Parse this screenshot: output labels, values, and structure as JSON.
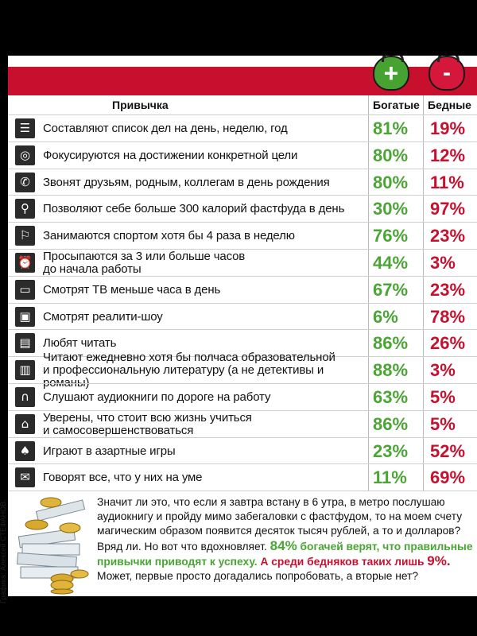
{
  "header": {
    "col_habit": "Привычка",
    "col_rich": "Богатые",
    "col_poor": "Бедные",
    "rich_symbol": "+",
    "poor_symbol": "-"
  },
  "colors": {
    "rich": "#4aa534",
    "poor": "#c8102e",
    "band": "#c8102e"
  },
  "chart_data": {
    "type": "table",
    "columns": [
      "Привычка",
      "Богатые",
      "Бедные"
    ],
    "rows": [
      {
        "icon": "checklist-icon",
        "habit": "Составляют список дел на день, неделю, год",
        "rich": "81%",
        "poor": "19%"
      },
      {
        "icon": "target-icon",
        "habit": "Фокусируются на достижении конкретной цели",
        "rich": "80%",
        "poor": "12%"
      },
      {
        "icon": "phone-icon",
        "habit": "Звонят друзьям, родным, коллегам в день рождения",
        "rich": "80%",
        "poor": "11%"
      },
      {
        "icon": "fastfood-icon",
        "habit": "Позволяют себе больше 300 калорий фастфуда в день",
        "rich": "30%",
        "poor": "97%"
      },
      {
        "icon": "runner-icon",
        "habit": "Занимаются спортом хотя бы 4 раза в неделю",
        "rich": "76%",
        "poor": "23%"
      },
      {
        "icon": "alarm-clock-icon",
        "habit": "Просыпаются за 3 или больше часов\nдо начала работы",
        "rich": "44%",
        "poor": "3%"
      },
      {
        "icon": "tv-icon",
        "habit": "Смотрят ТВ меньше часа в день",
        "rich": "67%",
        "poor": "23%"
      },
      {
        "icon": "tv-show-icon",
        "habit": "Смотрят реалити-шоу",
        "rich": "6%",
        "poor": "78%"
      },
      {
        "icon": "book-icon",
        "habit": "Любят читать",
        "rich": "86%",
        "poor": "26%"
      },
      {
        "icon": "reading-book-icon",
        "habit": "Читают ежедневно хотя бы полчаса образовательной\nи профессиональную литературу (а не детективы и романы)",
        "rich": "88%",
        "poor": "3%"
      },
      {
        "icon": "headphones-icon",
        "habit": "Слушают аудиокниги по дороге на работу",
        "rich": "63%",
        "poor": "5%"
      },
      {
        "icon": "graduation-cap-icon",
        "habit": "Уверены, что стоит всю жизнь учиться\nи самосовершенствоваться",
        "rich": "86%",
        "poor": "5%"
      },
      {
        "icon": "spade-icon",
        "habit": "Играют в азартные игры",
        "rich": "23%",
        "poor": "52%"
      },
      {
        "icon": "speech-bubble-icon",
        "habit": "Говорят все, что у них на уме",
        "rich": "11%",
        "poor": "69%"
      }
    ]
  },
  "footer": {
    "text_1": "Значит ли это, что если я завтра встану в 6 утра, в метро послушаю аудиокнигу и пройду мимо забегаловки с фастфудом, то на моем счету магическим образом появится десяток тысяч рублей, а то и долларов? Вряд ли. Но вот что вдохновляет. ",
    "green_pct": "84%",
    "green_text": " богачей верят, что правильные привычки приводят к успеху.",
    "red_text": " А среди бедняков таких лишь ",
    "red_pct": "9%.",
    "text_2": " Может, первые просто догадались попробовать, а вторые нет?"
  },
  "credit": "Графика: Алексей СТЕФАНОВ."
}
